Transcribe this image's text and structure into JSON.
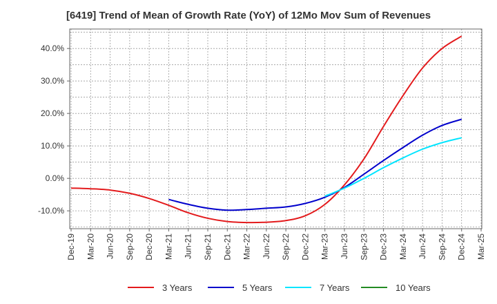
{
  "chart_data": {
    "type": "line",
    "title": "[6419]  Trend of Mean of Growth Rate (YoY) of 12Mo Mov Sum of Revenues",
    "x_labels": [
      "Dec-19",
      "Mar-20",
      "Jun-20",
      "Sep-20",
      "Dec-20",
      "Mar-21",
      "Jun-21",
      "Sep-21",
      "Dec-21",
      "Mar-22",
      "Jun-22",
      "Sep-22",
      "Dec-22",
      "Mar-23",
      "Jun-23",
      "Sep-23",
      "Dec-23",
      "Mar-24",
      "Jun-24",
      "Sep-24",
      "Dec-24",
      "Mar-25"
    ],
    "y_ticks": [
      -10,
      0,
      10,
      20,
      30,
      40
    ],
    "y_tick_labels": [
      "-10.0%",
      "0.0%",
      "10.0%",
      "20.0%",
      "30.0%",
      "40.0%"
    ],
    "ylim": [
      -15.5,
      46
    ],
    "grid": true,
    "series": [
      {
        "name": "3 Years",
        "color": "#e31a1c",
        "values": [
          -3.0,
          -3.2,
          -3.6,
          -4.6,
          -6.2,
          -8.3,
          -10.6,
          -12.3,
          -13.3,
          -13.6,
          -13.5,
          -13.0,
          -11.5,
          -8.0,
          -2.0,
          6.0,
          16.0,
          25.5,
          34.0,
          40.0,
          43.8,
          null
        ]
      },
      {
        "name": "5 Years",
        "color": "#0000cc",
        "values": [
          null,
          null,
          null,
          null,
          null,
          -6.5,
          -8.0,
          -9.2,
          -9.8,
          -9.6,
          -9.2,
          -8.8,
          -7.7,
          -5.8,
          -2.8,
          1.3,
          5.5,
          9.5,
          13.3,
          16.3,
          18.2,
          null
        ]
      },
      {
        "name": "7 Years",
        "color": "#00e5ff",
        "values": [
          null,
          null,
          null,
          null,
          null,
          null,
          null,
          null,
          null,
          null,
          null,
          null,
          null,
          -5.5,
          -3.0,
          0.0,
          3.3,
          6.3,
          9.0,
          11.0,
          12.5,
          null
        ]
      },
      {
        "name": "10 Years",
        "color": "#228b22",
        "values": [
          null,
          null,
          null,
          null,
          null,
          null,
          null,
          null,
          null,
          null,
          null,
          null,
          null,
          null,
          null,
          null,
          null,
          null,
          null,
          null,
          null,
          null
        ]
      }
    ]
  }
}
